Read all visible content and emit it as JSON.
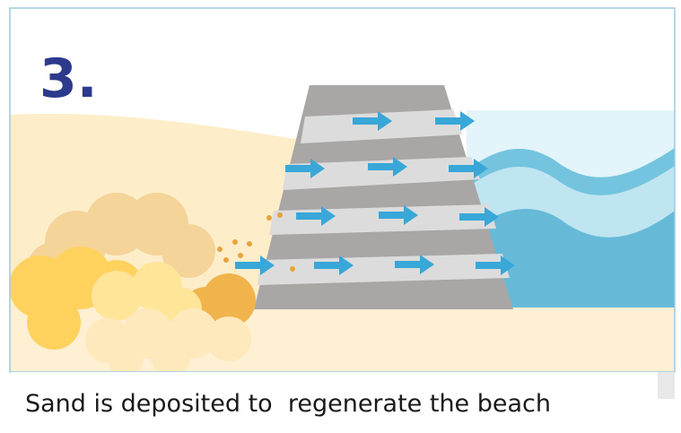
{
  "step": "3.",
  "caption": "Sand is deposited to  regenerate the beach"
}
